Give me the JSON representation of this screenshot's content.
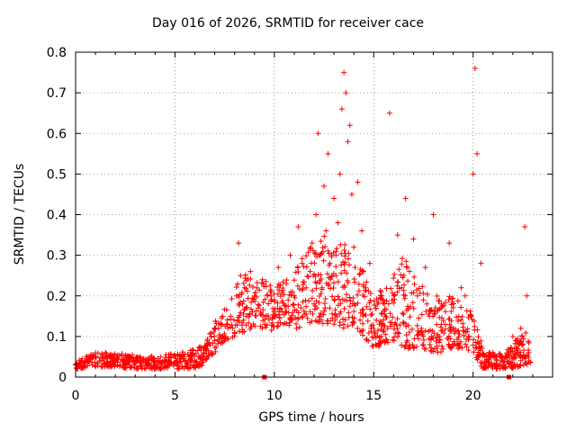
{
  "chart_data": {
    "type": "scatter",
    "title": "Day 016 of 2026, SRMTID for receiver cace",
    "xlabel": "GPS time / hours",
    "ylabel": "SRMTID / TECUs",
    "xlim": [
      0,
      24
    ],
    "ylim": [
      0,
      0.8
    ],
    "x_ticks": [
      "0",
      "5",
      "10",
      "15",
      "20"
    ],
    "y_ticks": [
      "0",
      "0.1",
      "0.2",
      "0.3",
      "0.4",
      "0.5",
      "0.6",
      "0.7",
      "0.8"
    ],
    "grid": true,
    "marker": "+",
    "color": "#ff0000",
    "series": [
      {
        "name": "SRMTID",
        "x": [
          0.0,
          0.3,
          0.6,
          0.9,
          1.2,
          1.5,
          1.8,
          2.1,
          2.4,
          2.7,
          3.0,
          3.3,
          3.6,
          3.9,
          4.2,
          4.5,
          4.8,
          5.1,
          5.4,
          5.7,
          6.0,
          6.3,
          6.6,
          6.8,
          7.0,
          7.2,
          7.4,
          7.6,
          7.8,
          8.0,
          8.1,
          8.2,
          8.3,
          8.4,
          8.5,
          8.6,
          8.8,
          9.0,
          9.2,
          9.4,
          9.6,
          9.8,
          10.0,
          10.2,
          10.4,
          10.6,
          10.8,
          11.0,
          11.2,
          11.4,
          11.6,
          11.8,
          11.9,
          12.0,
          12.1,
          12.2,
          12.3,
          12.4,
          12.5,
          12.6,
          12.7,
          12.8,
          12.9,
          13.0,
          13.1,
          13.2,
          13.3,
          13.4,
          13.5,
          13.6,
          13.7,
          13.8,
          13.9,
          14.0,
          14.2,
          14.4,
          14.6,
          14.8,
          15.0,
          15.2,
          15.4,
          15.6,
          15.7,
          15.8,
          16.0,
          16.2,
          16.4,
          16.6,
          16.8,
          17.0,
          17.2,
          17.4,
          17.6,
          17.8,
          18.0,
          18.2,
          18.4,
          18.6,
          18.8,
          19.0,
          19.2,
          19.4,
          19.6,
          19.8,
          19.9,
          20.0,
          20.1,
          20.2,
          20.4,
          20.6,
          20.8,
          21.0,
          21.2,
          21.4,
          21.6,
          21.8,
          22.0,
          22.2,
          22.4,
          22.5,
          22.6,
          22.7,
          22.8
        ],
        "y": [
          0.03,
          0.04,
          0.035,
          0.05,
          0.04,
          0.06,
          0.05,
          0.045,
          0.04,
          0.05,
          0.035,
          0.04,
          0.03,
          0.045,
          0.04,
          0.035,
          0.05,
          0.04,
          0.045,
          0.05,
          0.04,
          0.05,
          0.045,
          0.06,
          0.09,
          0.12,
          0.1,
          0.13,
          0.15,
          0.11,
          0.2,
          0.33,
          0.25,
          0.18,
          0.22,
          0.15,
          0.26,
          0.2,
          0.17,
          0.24,
          0.15,
          0.21,
          0.19,
          0.27,
          0.16,
          0.23,
          0.3,
          0.2,
          0.37,
          0.28,
          0.22,
          0.26,
          0.33,
          0.18,
          0.4,
          0.6,
          0.3,
          0.22,
          0.47,
          0.36,
          0.55,
          0.28,
          0.25,
          0.44,
          0.3,
          0.38,
          0.5,
          0.66,
          0.75,
          0.7,
          0.58,
          0.62,
          0.45,
          0.32,
          0.48,
          0.36,
          0.22,
          0.28,
          0.12,
          0.18,
          0.2,
          0.15,
          0.12,
          0.65,
          0.2,
          0.35,
          0.22,
          0.44,
          0.26,
          0.34,
          0.2,
          0.12,
          0.27,
          0.15,
          0.4,
          0.1,
          0.18,
          0.13,
          0.33,
          0.12,
          0.08,
          0.22,
          0.2,
          0.1,
          0.15,
          0.5,
          0.76,
          0.55,
          0.28,
          0.05,
          0.04,
          0.06,
          0.05,
          0.04,
          0.05,
          0.04,
          0.1,
          0.06,
          0.12,
          0.05,
          0.37,
          0.2,
          0.04
        ],
        "fill": {
          "note": "dense measurement cloud drawn from the same SRMTID series",
          "envelope_x": [
            0,
            1,
            2,
            3,
            4,
            5,
            6,
            6.5,
            7,
            7.5,
            8,
            8.5,
            9,
            9.5,
            10,
            10.5,
            11,
            11.5,
            12,
            12.5,
            13,
            13.5,
            14,
            14.5,
            15,
            15.5,
            16,
            16.5,
            17,
            17.5,
            18,
            18.5,
            19,
            19.5,
            20,
            20.5,
            21,
            21.5,
            22,
            22.5,
            22.9
          ],
          "envelope_lo": [
            0.02,
            0.025,
            0.025,
            0.02,
            0.02,
            0.02,
            0.02,
            0.03,
            0.06,
            0.09,
            0.1,
            0.11,
            0.12,
            0.1,
            0.12,
            0.13,
            0.12,
            0.12,
            0.14,
            0.13,
            0.13,
            0.12,
            0.13,
            0.1,
            0.07,
            0.08,
            0.09,
            0.07,
            0.07,
            0.07,
            0.06,
            0.06,
            0.07,
            0.07,
            0.06,
            0.02,
            0.02,
            0.02,
            0.02,
            0.03,
            0.03
          ],
          "envelope_hi": [
            0.05,
            0.06,
            0.06,
            0.055,
            0.05,
            0.06,
            0.07,
            0.08,
            0.14,
            0.17,
            0.22,
            0.26,
            0.24,
            0.25,
            0.22,
            0.24,
            0.27,
            0.3,
            0.33,
            0.35,
            0.32,
            0.34,
            0.3,
            0.26,
            0.2,
            0.22,
            0.26,
            0.3,
            0.26,
            0.22,
            0.2,
            0.2,
            0.2,
            0.18,
            0.16,
            0.07,
            0.06,
            0.06,
            0.08,
            0.12,
            0.1
          ],
          "count": 1400
        }
      }
    ],
    "highlight_points": [
      {
        "x": 9.5,
        "y": 0.0
      },
      {
        "x": 21.8,
        "y": 0.0
      }
    ]
  }
}
